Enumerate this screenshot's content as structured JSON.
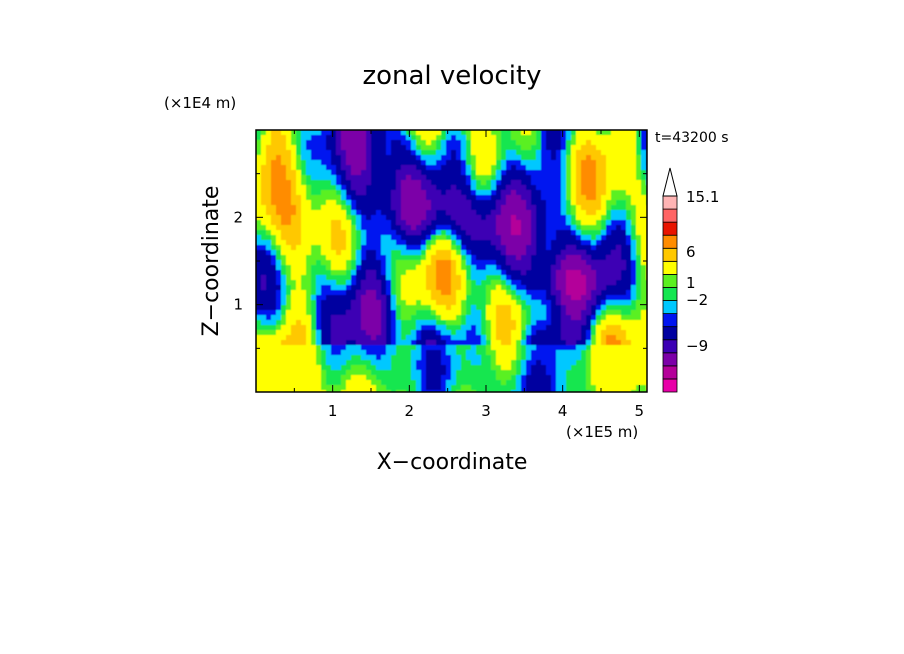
{
  "chart_data": {
    "type": "heatmap",
    "title": "zonal velocity",
    "xlabel": "X−coordinate",
    "ylabel": "Z−coordinate",
    "x_scale_label": "(×1E5 m)",
    "y_scale_label": "(×1E4 m)",
    "time_label": "t=43200 s",
    "xlim": [
      0,
      5.1
    ],
    "ylim": [
      0,
      3.0
    ],
    "x_ticks": [
      1,
      2,
      3,
      4,
      5
    ],
    "y_ticks": [
      1,
      2
    ],
    "colorbar": {
      "labels": [
        "15.1",
        "6",
        "1",
        "−2",
        "−9"
      ],
      "levels": [
        -15,
        -12,
        -9,
        -6,
        -4,
        -2,
        -1,
        0,
        1,
        2,
        4,
        6,
        9,
        12,
        15.1
      ],
      "colors": [
        "#e800a8",
        "#b4009a",
        "#7c00a8",
        "#3c00b4",
        "#0000a0",
        "#0014f0",
        "#00c8ff",
        "#14e650",
        "#5af020",
        "#ffff00",
        "#ffc800",
        "#ff8c00",
        "#e81400",
        "#ff6464",
        "#ffb4b4"
      ],
      "extend_top": true
    },
    "grid": false
  }
}
